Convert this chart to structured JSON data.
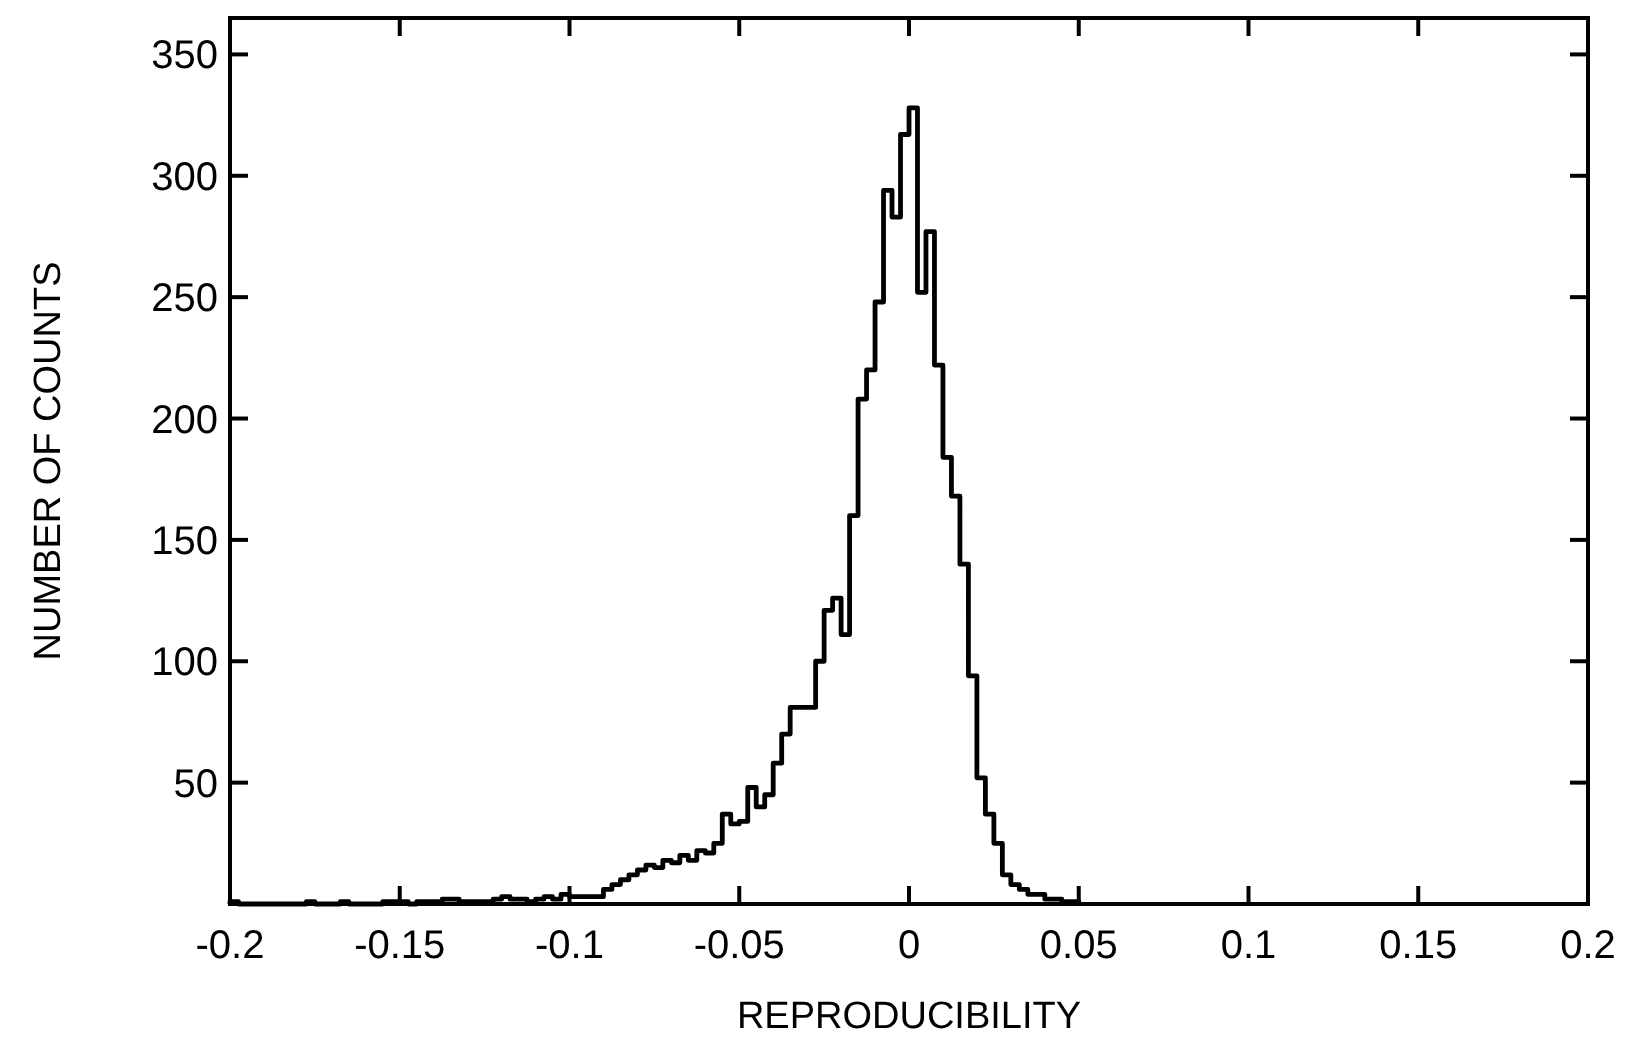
{
  "chart_data": {
    "type": "histogram",
    "xlabel": "REPRODUCIBILITY",
    "ylabel": "NUMBER OF COUNTS",
    "bins": [
      -0.2,
      -0.1975,
      -0.195,
      -0.1925,
      -0.19,
      -0.1875,
      -0.185,
      -0.1825,
      -0.18,
      -0.1775,
      -0.175,
      -0.1725,
      -0.17,
      -0.1675,
      -0.165,
      -0.1625,
      -0.16,
      -0.1575,
      -0.155,
      -0.1525,
      -0.15,
      -0.1475,
      -0.145,
      -0.1425,
      -0.14,
      -0.1375,
      -0.135,
      -0.1325,
      -0.13,
      -0.1275,
      -0.125,
      -0.1225,
      -0.12,
      -0.1175,
      -0.115,
      -0.1125,
      -0.11,
      -0.1075,
      -0.105,
      -0.1025,
      -0.1,
      -0.0975,
      -0.095,
      -0.0925,
      -0.09,
      -0.0875,
      -0.085,
      -0.0825,
      -0.08,
      -0.0775,
      -0.075,
      -0.0725,
      -0.07,
      -0.0675,
      -0.065,
      -0.0625,
      -0.06,
      -0.0575,
      -0.055,
      -0.0525,
      -0.05,
      -0.0475,
      -0.045,
      -0.0425,
      -0.04,
      -0.0375,
      -0.035,
      -0.0325,
      -0.03,
      -0.0275,
      -0.025,
      -0.0225,
      -0.02,
      -0.0175,
      -0.015,
      -0.0125,
      -0.01,
      -0.0075,
      -0.005,
      -0.0025,
      0,
      0.0025,
      0.005,
      0.0075,
      0.01,
      0.0125,
      0.015,
      0.0175,
      0.02,
      0.0225,
      0.025,
      0.0275,
      0.03,
      0.0325,
      0.035,
      0.0375,
      0.04,
      0.0425,
      0.045,
      0.0475,
      0.05
    ],
    "values": [
      1,
      0,
      0,
      0,
      0,
      0,
      0,
      0,
      0,
      1,
      0,
      0,
      0,
      1,
      0,
      0,
      0,
      0,
      1,
      1,
      1,
      0,
      1,
      1,
      1,
      2,
      2,
      1,
      1,
      1,
      1,
      2,
      3,
      2,
      2,
      1,
      2,
      3,
      2,
      4,
      3,
      3,
      3,
      3,
      6,
      8,
      10,
      12,
      14,
      16,
      15,
      18,
      17,
      20,
      18,
      22,
      21,
      25,
      37,
      33,
      34,
      48,
      40,
      45,
      58,
      70,
      81,
      81,
      81,
      100,
      121,
      126,
      111,
      160,
      208,
      220,
      248,
      294,
      283,
      317,
      328,
      252,
      277,
      222,
      184,
      168,
      140,
      94,
      52,
      37,
      25,
      12,
      8,
      6,
      4,
      4,
      2,
      2,
      1,
      1
    ],
    "color": "#000000",
    "xlim": [
      -0.2,
      0.2
    ],
    "xticks": [
      -0.2,
      -0.15,
      -0.1,
      -0.05,
      0,
      0.05,
      0.1,
      0.15,
      0.2
    ],
    "ylim": [
      0,
      365
    ],
    "yticks": [
      {
        "value": 0,
        "label": null
      },
      50,
      100,
      150,
      200,
      250,
      300,
      350
    ],
    "grid": false
  }
}
